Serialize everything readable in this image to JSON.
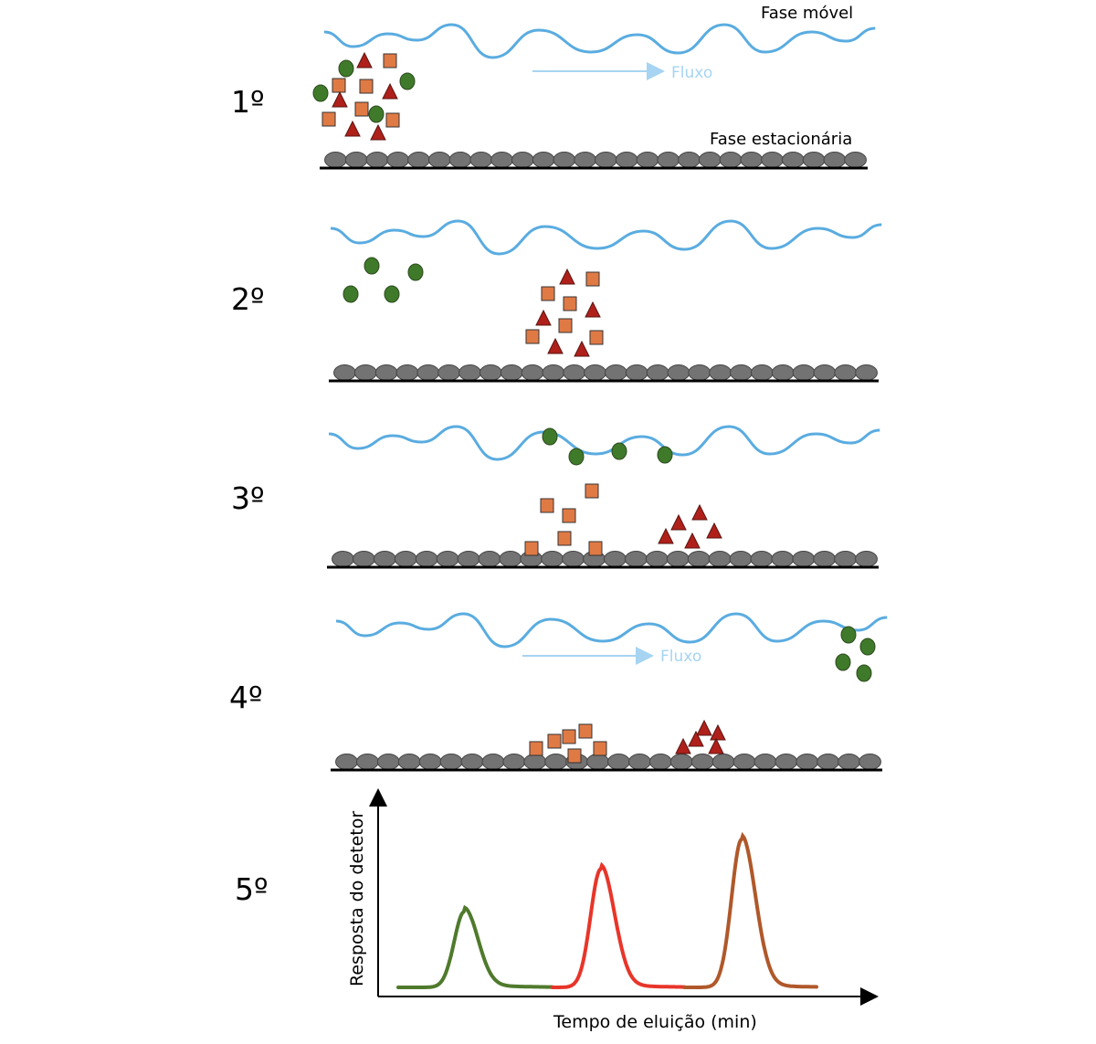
{
  "steps": [
    {
      "label": "1º"
    },
    {
      "label": "2º"
    },
    {
      "label": "3º"
    },
    {
      "label": "4º"
    },
    {
      "label": "5º"
    }
  ],
  "labels": {
    "mobile_phase": "Fase móvel",
    "stationary_phase": "Fase estacionária",
    "flow": "Fluxo"
  },
  "colors": {
    "wave": "#5aace0",
    "flow_arrow": "#a6d4f2",
    "bead": "#737373",
    "circle": "#3f7a2a",
    "square": "#e07a45",
    "triangle": "#b0201a",
    "peak_green": "#4f7a2c",
    "peak_red": "#e8352a",
    "peak_brown": "#b0582a"
  },
  "chart_data": {
    "type": "line",
    "title": "",
    "xlabel": "Tempo de eluição (min)",
    "ylabel": "Resposta do detetor",
    "xlim": [
      0,
      10
    ],
    "ylim": [
      0,
      10
    ],
    "grid": false,
    "series": [
      {
        "name": "circles (green)",
        "color": "#4f7a2c",
        "peak_x": 1.5,
        "peak_y": 4.6,
        "range": [
          0,
          3.5
        ]
      },
      {
        "name": "squares (red)",
        "color": "#e8352a",
        "peak_x": 4.6,
        "peak_y": 7.2,
        "range": [
          3.5,
          6.5
        ]
      },
      {
        "name": "triangles (brown)",
        "color": "#b0582a",
        "peak_x": 7.8,
        "peak_y": 9.0,
        "range": [
          6.5,
          9.5
        ]
      }
    ]
  }
}
